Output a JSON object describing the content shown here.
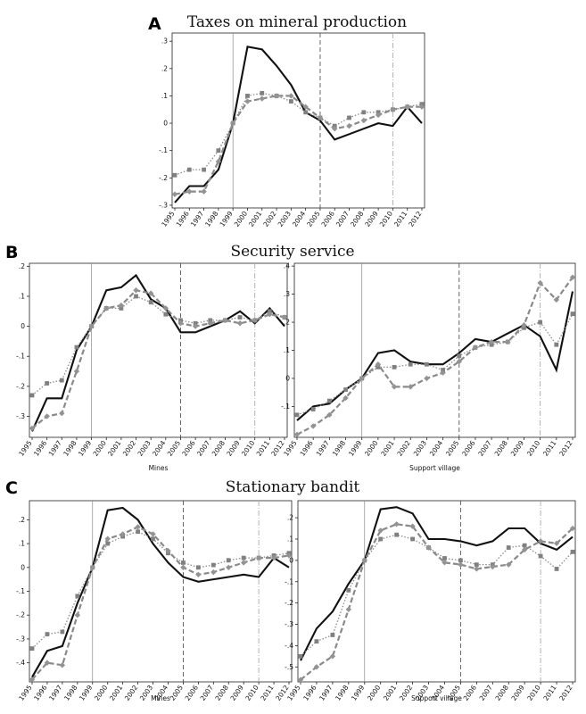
{
  "panels": [
    {
      "letter": "A",
      "title": "Taxes on mineral production"
    },
    {
      "letter": "B",
      "title": "Security service"
    },
    {
      "letter": "C",
      "title": "Stationary bandit"
    }
  ],
  "colors": {
    "solid": "#111111",
    "dashed": "#8a8a8a",
    "dotted": "#8a8a8a"
  },
  "chart_data": [
    {
      "id": "A-mines",
      "panel": "A",
      "type": "line",
      "title": "Taxes on mineral production",
      "xlabel": "",
      "x": [
        "1995",
        "1996",
        "1997",
        "1998",
        "1999",
        "2000",
        "2001",
        "2002",
        "2003",
        "2004",
        "2005",
        "2006",
        "2007",
        "2008",
        "2009",
        "2010",
        "2011",
        "2012"
      ],
      "ylim": [
        -0.31,
        0.33
      ],
      "yticks": [
        -0.3,
        -0.2,
        -0.1,
        0,
        0.1,
        0.2,
        0.3
      ],
      "ytick_labels": [
        "-.3",
        "-.2",
        "-.1",
        "0",
        ".1",
        ".2",
        ".3"
      ],
      "vlines": [
        {
          "x": "1999",
          "style": "solid"
        },
        {
          "x": "2005",
          "style": "dashed"
        },
        {
          "x": "2010",
          "style": "dashdot"
        }
      ],
      "series": [
        {
          "style": "solid",
          "marker": "none",
          "values": [
            -0.29,
            -0.23,
            -0.23,
            -0.17,
            0,
            0.28,
            0.27,
            0.21,
            0.14,
            0.04,
            0.01,
            -0.06,
            -0.04,
            -0.02,
            0,
            -0.01,
            0.06,
            0
          ]
        },
        {
          "style": "dotted",
          "marker": "square",
          "values": [
            -0.19,
            -0.17,
            -0.17,
            -0.1,
            0,
            0.1,
            0.11,
            0.1,
            0.08,
            0.04,
            0.02,
            -0.01,
            0.02,
            0.04,
            0.04,
            0.05,
            0.06,
            0.07
          ]
        },
        {
          "style": "dashed",
          "marker": "diamond",
          "values": [
            -0.26,
            -0.25,
            -0.25,
            -0.14,
            0,
            0.08,
            0.09,
            0.1,
            0.1,
            0.06,
            0.02,
            -0.02,
            -0.01,
            0.01,
            0.03,
            0.05,
            0.06,
            0.06
          ]
        }
      ]
    },
    {
      "id": "B-mines",
      "panel": "B",
      "type": "line",
      "title": "Security service",
      "xlabel": "Mines",
      "x": [
        "1995",
        "1996",
        "1997",
        "1998",
        "1999",
        "2000",
        "2001",
        "2002",
        "2003",
        "2004",
        "2005",
        "2006",
        "2007",
        "2008",
        "2009",
        "2010",
        "2011",
        "2012"
      ],
      "ylim": [
        -0.37,
        0.21
      ],
      "yticks": [
        -0.3,
        -0.2,
        -0.1,
        0,
        0.1,
        0.2
      ],
      "ytick_labels": [
        "-.3",
        "-.2",
        "-.1",
        "0",
        ".1",
        ".2"
      ],
      "vlines": [
        {
          "x": "1999",
          "style": "solid"
        },
        {
          "x": "2005",
          "style": "dashed"
        },
        {
          "x": "2010",
          "style": "dashdot"
        }
      ],
      "series": [
        {
          "style": "solid",
          "marker": "none",
          "values": [
            -0.35,
            -0.24,
            -0.24,
            -0.08,
            0,
            0.12,
            0.13,
            0.17,
            0.09,
            0.06,
            -0.02,
            -0.02,
            0,
            0.02,
            0.05,
            0.01,
            0.06,
            0
          ]
        },
        {
          "style": "dotted",
          "marker": "square",
          "values": [
            -0.23,
            -0.19,
            -0.18,
            -0.07,
            0,
            0.06,
            0.06,
            0.1,
            0.08,
            0.04,
            0.02,
            0.01,
            0.02,
            0.02,
            0.03,
            0.02,
            0.05,
            0.03
          ]
        },
        {
          "style": "dashed",
          "marker": "diamond",
          "values": [
            -0.34,
            -0.3,
            -0.29,
            -0.15,
            0,
            0.06,
            0.07,
            0.12,
            0.11,
            0.06,
            0.01,
            0,
            0.01,
            0.02,
            0.01,
            0.02,
            0.04,
            0.03
          ]
        }
      ]
    },
    {
      "id": "B-village",
      "panel": "B",
      "type": "line",
      "title": "",
      "xlabel": "Support village",
      "x": [
        "1995",
        "1996",
        "1997",
        "1998",
        "1999",
        "2000",
        "2001",
        "2002",
        "2003",
        "2004",
        "2005",
        "2006",
        "2007",
        "2008",
        "2009",
        "2010",
        "2011",
        "2012"
      ],
      "ylim": [
        -0.21,
        0.41
      ],
      "yticks": [
        -0.1,
        0,
        0.1,
        0.2,
        0.3,
        0.4
      ],
      "ytick_labels": [
        "-.1",
        "0",
        ".1",
        ".2",
        ".3",
        ".4"
      ],
      "vlines": [
        {
          "x": "1999",
          "style": "solid"
        },
        {
          "x": "2005",
          "style": "dashed"
        },
        {
          "x": "2010",
          "style": "dashdot"
        }
      ],
      "series": [
        {
          "style": "solid",
          "marker": "none",
          "values": [
            -0.15,
            -0.1,
            -0.09,
            -0.04,
            0,
            0.09,
            0.1,
            0.06,
            0.05,
            0.05,
            0.09,
            0.14,
            0.13,
            0.16,
            0.19,
            0.15,
            0.03,
            0.31
          ]
        },
        {
          "style": "dotted",
          "marker": "square",
          "values": [
            -0.13,
            -0.11,
            -0.08,
            -0.04,
            0,
            0.04,
            0.04,
            0.05,
            0.05,
            0.03,
            0.08,
            0.11,
            0.12,
            0.13,
            0.18,
            0.2,
            0.12,
            0.23
          ]
        },
        {
          "style": "dashed",
          "marker": "diamond",
          "values": [
            -0.2,
            -0.17,
            -0.13,
            -0.07,
            0,
            0.05,
            -0.03,
            -0.03,
            0,
            0.02,
            0.06,
            0.11,
            0.13,
            0.13,
            0.19,
            0.34,
            0.28,
            0.36
          ]
        }
      ]
    },
    {
      "id": "C-mines",
      "panel": "C",
      "type": "line",
      "title": "Stationary bandit",
      "xlabel": "Mines",
      "x": [
        "1995",
        "1996",
        "1997",
        "1998",
        "1999",
        "2000",
        "2001",
        "2002",
        "2003",
        "2004",
        "2005",
        "2006",
        "2007",
        "2008",
        "2009",
        "2010",
        "2011",
        "2012"
      ],
      "ylim": [
        -0.48,
        0.28
      ],
      "yticks": [
        -0.4,
        -0.3,
        -0.2,
        -0.1,
        0,
        0.1,
        0.2
      ],
      "ytick_labels": [
        "-.4",
        "-.3",
        "-.2",
        "-.1",
        "0",
        ".1",
        ".2"
      ],
      "vlines": [
        {
          "x": "1999",
          "style": "solid"
        },
        {
          "x": "2005",
          "style": "dashed"
        },
        {
          "x": "2010",
          "style": "dashdot"
        }
      ],
      "series": [
        {
          "style": "solid",
          "marker": "none",
          "values": [
            -0.46,
            -0.35,
            -0.33,
            -0.15,
            0,
            0.24,
            0.25,
            0.2,
            0.1,
            0.02,
            -0.04,
            -0.06,
            -0.05,
            -0.04,
            -0.03,
            -0.04,
            0.04,
            0
          ]
        },
        {
          "style": "dotted",
          "marker": "square",
          "values": [
            -0.34,
            -0.28,
            -0.27,
            -0.12,
            0,
            0.1,
            0.13,
            0.15,
            0.12,
            0.06,
            0.02,
            0,
            0.01,
            0.03,
            0.04,
            0.04,
            0.05,
            0.06
          ]
        },
        {
          "style": "dashed",
          "marker": "diamond",
          "values": [
            -0.47,
            -0.4,
            -0.41,
            -0.2,
            0,
            0.12,
            0.14,
            0.17,
            0.14,
            0.07,
            0,
            -0.03,
            -0.02,
            0,
            0.02,
            0.04,
            0.04,
            0.05
          ]
        }
      ]
    },
    {
      "id": "C-village",
      "panel": "C",
      "type": "line",
      "title": "",
      "xlabel": "Support village",
      "x": [
        "1995",
        "1996",
        "1997",
        "1998",
        "1999",
        "2000",
        "2001",
        "2002",
        "2003",
        "2004",
        "2005",
        "2006",
        "2007",
        "2008",
        "2009",
        "2010",
        "2011",
        "2012"
      ],
      "ylim": [
        -0.57,
        0.28
      ],
      "yticks": [
        -0.5,
        -0.4,
        -0.3,
        -0.2,
        -0.1,
        0,
        0.1,
        0.2
      ],
      "ytick_labels": [
        "-.5",
        "-.4",
        "-.3",
        "-.2",
        "-.1",
        "0",
        ".1",
        ".2"
      ],
      "vlines": [
        {
          "x": "1999",
          "style": "solid"
        },
        {
          "x": "2005",
          "style": "dashed"
        },
        {
          "x": "2010",
          "style": "dashdot"
        }
      ],
      "series": [
        {
          "style": "solid",
          "marker": "none",
          "values": [
            -0.47,
            -0.32,
            -0.24,
            -0.11,
            0,
            0.24,
            0.25,
            0.22,
            0.1,
            0.1,
            0.09,
            0.07,
            0.09,
            0.15,
            0.15,
            0.08,
            0.05,
            0.11
          ]
        },
        {
          "style": "dotted",
          "marker": "square",
          "values": [
            -0.45,
            -0.38,
            -0.35,
            -0.14,
            0,
            0.1,
            0.12,
            0.1,
            0.06,
            0.01,
            0,
            -0.02,
            -0.02,
            0.06,
            0.07,
            0.02,
            -0.04,
            0.04
          ]
        },
        {
          "style": "dashed",
          "marker": "diamond",
          "values": [
            -0.56,
            -0.5,
            -0.45,
            -0.23,
            0,
            0.14,
            0.17,
            0.16,
            0.06,
            -0.01,
            -0.02,
            -0.04,
            -0.03,
            -0.02,
            0.05,
            0.09,
            0.08,
            0.15
          ]
        }
      ]
    }
  ]
}
